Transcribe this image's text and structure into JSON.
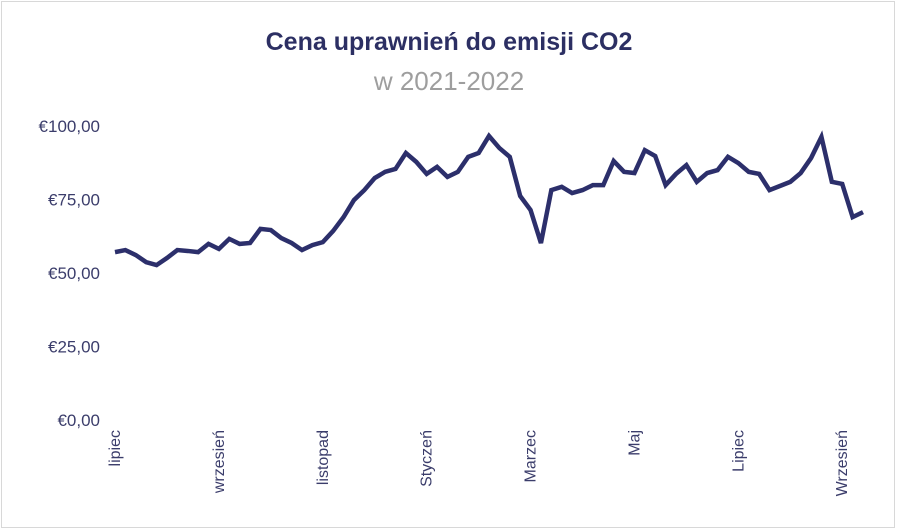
{
  "chart_data": {
    "type": "line",
    "title": "Cena uprawnień do emisji CO2",
    "subtitle": "w 2021-2022",
    "xlabel": "",
    "ylabel": "",
    "ylim": [
      0,
      100
    ],
    "yticks": [
      "€0,00",
      "€25,00",
      "€50,00",
      "€75,00",
      "€100,00"
    ],
    "ytick_values": [
      0,
      25,
      50,
      75,
      100
    ],
    "x_tick_labels": [
      {
        "index": 0,
        "label": "lipiec"
      },
      {
        "index": 10,
        "label": "wrzesień"
      },
      {
        "index": 20,
        "label": "listopad"
      },
      {
        "index": 30,
        "label": "Styczeń"
      },
      {
        "index": 40,
        "label": "Marzec"
      },
      {
        "index": 50,
        "label": "Maj"
      },
      {
        "index": 60,
        "label": "Lipiec"
      },
      {
        "index": 70,
        "label": "Wrzesień"
      }
    ],
    "grid": false,
    "line_color": "#2c2f6b",
    "series": [
      {
        "values": [
          57.1,
          57.8,
          56.1,
          53.7,
          52.7,
          55.1,
          57.8,
          57.5,
          57.1,
          59.9,
          58.2,
          61.6,
          59.9,
          60.2,
          65.0,
          64.6,
          61.9,
          60.2,
          57.8,
          59.5,
          60.5,
          64.3,
          69.0,
          74.8,
          78.2,
          82.3,
          84.4,
          85.4,
          90.8,
          87.8,
          83.7,
          86.1,
          82.7,
          84.4,
          89.5,
          90.8,
          96.6,
          92.5,
          89.5,
          76.2,
          71.4,
          60.2,
          78.2,
          79.3,
          77.2,
          78.2,
          79.9,
          79.9,
          88.1,
          84.4,
          84.0,
          91.8,
          89.8,
          79.9,
          83.7,
          86.7,
          81.0,
          84.0,
          85.0,
          89.5,
          87.4,
          84.4,
          83.7,
          78.2,
          79.6,
          81.0,
          84.0,
          89.1,
          96.3,
          81.0,
          80.3,
          69.0,
          70.7
        ]
      }
    ]
  }
}
